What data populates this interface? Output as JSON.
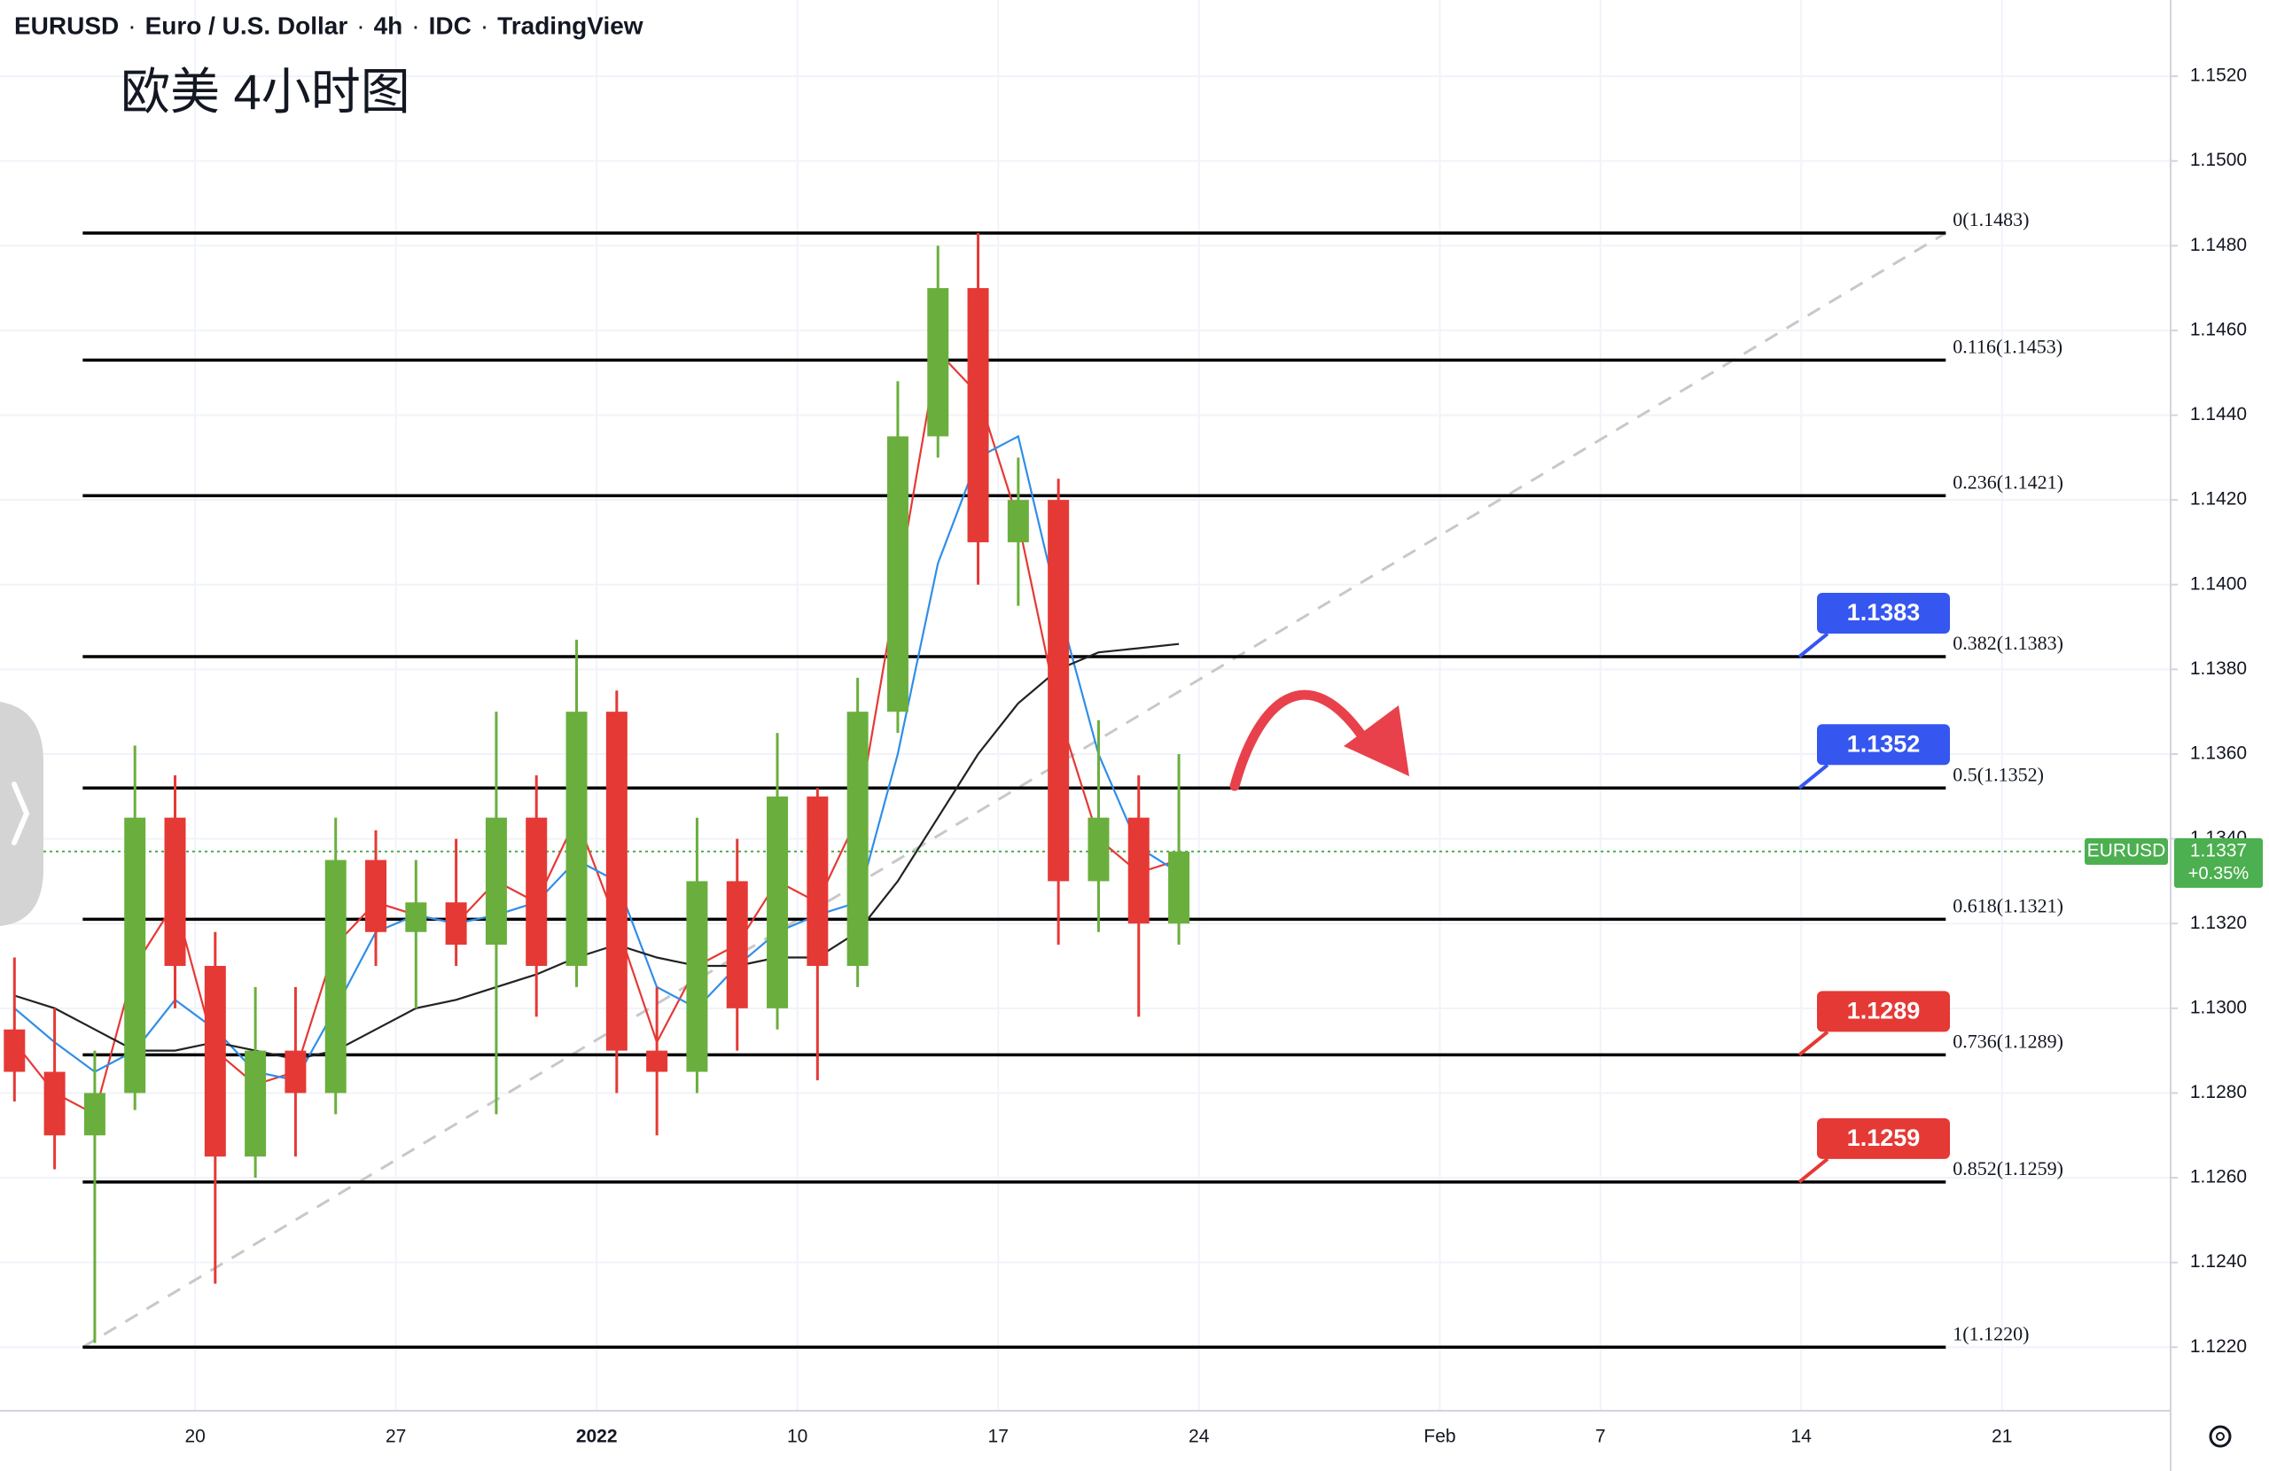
{
  "chart_data": {
    "type": "candlestick",
    "header": [
      "EURUSD",
      "Euro / U.S. Dollar",
      "4h",
      "IDC",
      "TradingView"
    ],
    "separator": "·",
    "title": "欧美 4小时图",
    "x": [
      -4.5,
      -3.5,
      -2.5,
      -1.5,
      -0.5,
      0.5,
      1.5,
      2.5,
      3.5,
      4.5,
      5.5,
      6.5,
      7.5,
      8.5,
      9.5,
      10.5,
      11.5,
      12.5,
      13.5,
      14.5,
      15.5,
      16.5,
      17.5,
      18.5,
      19.5,
      20.5,
      21.5,
      22.5,
      23.5,
      24.5
    ],
    "open": [
      1.1295,
      1.1285,
      1.127,
      1.128,
      1.1345,
      1.131,
      1.1265,
      1.129,
      1.128,
      1.1335,
      1.1318,
      1.1325,
      1.1315,
      1.1345,
      1.131,
      1.137,
      1.129,
      1.1285,
      1.133,
      1.13,
      1.135,
      1.131,
      1.137,
      1.1435,
      1.147,
      1.141,
      1.142,
      1.133,
      1.1345,
      1.132
    ],
    "high": [
      1.1312,
      1.13,
      1.129,
      1.1362,
      1.1355,
      1.1318,
      1.1305,
      1.1305,
      1.1345,
      1.1342,
      1.1335,
      1.134,
      1.137,
      1.1355,
      1.1387,
      1.1375,
      1.1305,
      1.1345,
      1.134,
      1.1365,
      1.1352,
      1.1378,
      1.1448,
      1.148,
      1.1483,
      1.143,
      1.1425,
      1.1368,
      1.1355,
      1.136
    ],
    "low": [
      1.1278,
      1.1262,
      1.1221,
      1.1276,
      1.13,
      1.1235,
      1.126,
      1.1265,
      1.1275,
      1.131,
      1.13,
      1.131,
      1.1275,
      1.1298,
      1.1305,
      1.128,
      1.127,
      1.128,
      1.129,
      1.1295,
      1.1283,
      1.1305,
      1.1365,
      1.143,
      1.14,
      1.1395,
      1.1315,
      1.1318,
      1.1298,
      1.1315
    ],
    "close": [
      1.1285,
      1.127,
      1.128,
      1.1345,
      1.131,
      1.1265,
      1.129,
      1.128,
      1.1335,
      1.1318,
      1.1325,
      1.1315,
      1.1345,
      1.131,
      1.137,
      1.129,
      1.1285,
      1.133,
      1.13,
      1.135,
      1.131,
      1.137,
      1.1435,
      1.147,
      1.141,
      1.142,
      1.133,
      1.1345,
      1.132,
      1.1337
    ],
    "up_color": "#6aaf3d",
    "down_color": "#e53935",
    "moving_averages": [
      {
        "color": "#e53935",
        "values": [
          1.1292,
          1.128,
          1.1275,
          1.131,
          1.1325,
          1.129,
          1.1282,
          1.1285,
          1.1315,
          1.1325,
          1.1322,
          1.132,
          1.133,
          1.1325,
          1.1345,
          1.132,
          1.1292,
          1.131,
          1.1315,
          1.133,
          1.1325,
          1.1345,
          1.14,
          1.1455,
          1.1445,
          1.1415,
          1.137,
          1.134,
          1.1332,
          1.1335
        ]
      },
      {
        "color": "#2f8ee8",
        "values": [
          1.13,
          1.1292,
          1.1285,
          1.129,
          1.1302,
          1.1295,
          1.1285,
          1.1283,
          1.13,
          1.1318,
          1.1322,
          1.132,
          1.1322,
          1.1325,
          1.1335,
          1.133,
          1.1305,
          1.13,
          1.131,
          1.1318,
          1.1322,
          1.1325,
          1.136,
          1.1405,
          1.143,
          1.1435,
          1.1395,
          1.136,
          1.1338,
          1.1332
        ]
      },
      {
        "color": "#222222",
        "values": [
          1.1303,
          1.13,
          1.1295,
          1.129,
          1.129,
          1.1292,
          1.129,
          1.1288,
          1.129,
          1.1295,
          1.13,
          1.1302,
          1.1305,
          1.1308,
          1.1312,
          1.1315,
          1.1312,
          1.131,
          1.131,
          1.1312,
          1.1312,
          1.1318,
          1.133,
          1.1345,
          1.136,
          1.1372,
          1.138,
          1.1384,
          1.1385,
          1.1386
        ]
      }
    ],
    "fib_x": [
      -2.8,
      43.6
    ],
    "fib_levels": [
      {
        "value": 1.1483,
        "label": "0(1.1483)"
      },
      {
        "value": 1.1453,
        "label": "0.116(1.1453)"
      },
      {
        "value": 1.1421,
        "label": "0.236(1.1421)"
      },
      {
        "value": 1.1383,
        "label": "0.382(1.1383)"
      },
      {
        "value": 1.1352,
        "label": "0.5(1.1352)"
      },
      {
        "value": 1.1321,
        "label": "0.618(1.1321)"
      },
      {
        "value": 1.1289,
        "label": "0.736(1.1289)"
      },
      {
        "value": 1.1259,
        "label": "0.852(1.1259)"
      },
      {
        "value": 1.122,
        "label": "1(1.1220)"
      }
    ],
    "badges": [
      {
        "value": 1.1383,
        "label": "1.1383",
        "color": "#3656f0"
      },
      {
        "value": 1.1352,
        "label": "1.1352",
        "color": "#3656f0"
      },
      {
        "value": 1.1289,
        "label": "1.1289",
        "color": "#e53935"
      },
      {
        "value": 1.1259,
        "label": "1.1259",
        "color": "#e53935"
      }
    ],
    "last": {
      "symbol": "EURUSD",
      "value": 1.1337,
      "label": "1.1337",
      "change": "+0.35%",
      "color": "#4caf50"
    },
    "xlim": [
      -4.86,
      49.2
    ],
    "xticks": [
      {
        "value": 0,
        "label": "20"
      },
      {
        "value": 5,
        "label": "27"
      },
      {
        "value": 10,
        "label": "2022"
      },
      {
        "value": 15,
        "label": "10"
      },
      {
        "value": 20,
        "label": "17"
      },
      {
        "value": 25,
        "label": "24"
      },
      {
        "value": 31,
        "label": "Feb"
      },
      {
        "value": 35,
        "label": "7"
      },
      {
        "value": 40,
        "label": "14"
      },
      {
        "value": 45,
        "label": "21"
      }
    ],
    "ylim": [
      1.1205,
      1.1538
    ],
    "yticks": [
      {
        "value": 1.122,
        "label": "1.1220"
      },
      {
        "value": 1.124,
        "label": "1.1240"
      },
      {
        "value": 1.126,
        "label": "1.1260"
      },
      {
        "value": 1.128,
        "label": "1.1280"
      },
      {
        "value": 1.13,
        "label": "1.1300"
      },
      {
        "value": 1.132,
        "label": "1.1320"
      },
      {
        "value": 1.134,
        "label": "1.1340"
      },
      {
        "value": 1.136,
        "label": "1.1360"
      },
      {
        "value": 1.138,
        "label": "1.1380"
      },
      {
        "value": 1.14,
        "label": "1.1400"
      },
      {
        "value": 1.142,
        "label": "1.1420"
      },
      {
        "value": 1.144,
        "label": "1.1440"
      },
      {
        "value": 1.146,
        "label": "1.1460"
      },
      {
        "value": 1.148,
        "label": "1.1480"
      },
      {
        "value": 1.15,
        "label": "1.1500"
      },
      {
        "value": 1.152,
        "label": "1.1520"
      }
    ],
    "grid": true
  }
}
